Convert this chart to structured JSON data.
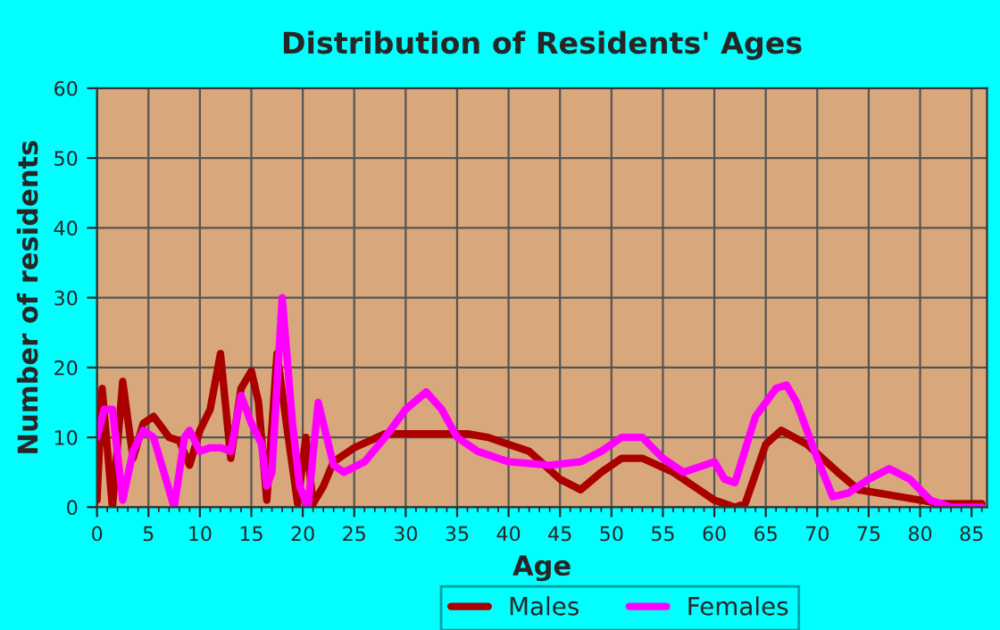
{
  "chart_data": {
    "type": "line",
    "title": "Distribution of Residents' Ages",
    "xlabel": "Age",
    "ylabel": "Number of residents",
    "xlim": [
      0,
      86.5
    ],
    "xticks": [
      0,
      5,
      10,
      15,
      20,
      25,
      30,
      35,
      40,
      45,
      50,
      55,
      60,
      65,
      70,
      75,
      80,
      85
    ],
    "ylim": [
      0,
      60
    ],
    "yticks": [
      0,
      10,
      20,
      30,
      40,
      50,
      60
    ],
    "grid": true,
    "legend": "bottom",
    "line_style": "solid",
    "marker": "none",
    "series": [
      {
        "name": "Males",
        "color": "#aa0000",
        "x": [
          0,
          0.5,
          1.5,
          2.5,
          3.5,
          4.5,
          5.5,
          7,
          8,
          9,
          10,
          11,
          12,
          13,
          14,
          15,
          15.7,
          16.5,
          17.5,
          18.5,
          19.5,
          20.3,
          21,
          22,
          23,
          25,
          28,
          32,
          36,
          38,
          42,
          45,
          47,
          49,
          51,
          53,
          56,
          58,
          60,
          62,
          63,
          65,
          66.5,
          69,
          72,
          74,
          76,
          80,
          82,
          86
        ],
        "values": [
          1,
          17,
          0,
          18,
          7,
          12,
          13,
          10,
          9.5,
          6,
          11,
          14,
          22,
          7,
          17,
          19.5,
          15,
          1,
          22,
          11,
          0.5,
          10,
          0.5,
          3,
          6.5,
          8.5,
          10.5,
          10.5,
          10.5,
          10,
          8,
          4,
          2.5,
          5,
          7,
          7,
          5,
          3,
          1,
          0,
          0.5,
          9,
          11,
          9,
          5,
          2.5,
          2,
          1,
          0.5,
          0.5
        ]
      },
      {
        "name": "Females",
        "color": "#ff00ff",
        "x": [
          0,
          0.7,
          1.5,
          2.5,
          3.5,
          4.5,
          5.5,
          6.5,
          7.5,
          8.5,
          9,
          10,
          11,
          12,
          13,
          14,
          15,
          16,
          16.5,
          17,
          18,
          19,
          19.7,
          20.5,
          21.5,
          22,
          23,
          24,
          26,
          28,
          30,
          32,
          33.5,
          35,
          37,
          40,
          44,
          47,
          49,
          51,
          53,
          55,
          57,
          59,
          60,
          61,
          62,
          64,
          66,
          67,
          68,
          70,
          71.5,
          73,
          75,
          77,
          79,
          81,
          83,
          86
        ],
        "values": [
          10,
          14,
          14,
          1,
          8,
          11,
          10,
          5,
          0,
          10,
          11,
          8,
          8.5,
          8.5,
          8,
          16,
          12,
          9,
          3,
          5,
          30,
          12,
          3,
          0,
          15,
          12,
          6,
          5,
          6.5,
          10,
          14,
          16.5,
          14,
          10,
          8,
          6.5,
          6,
          6.5,
          8,
          10,
          10,
          7,
          5,
          6,
          6.5,
          4,
          3.5,
          13,
          17,
          17.5,
          15,
          7,
          1.5,
          2,
          4,
          5.5,
          4,
          1,
          0,
          0
        ]
      }
    ]
  }
}
